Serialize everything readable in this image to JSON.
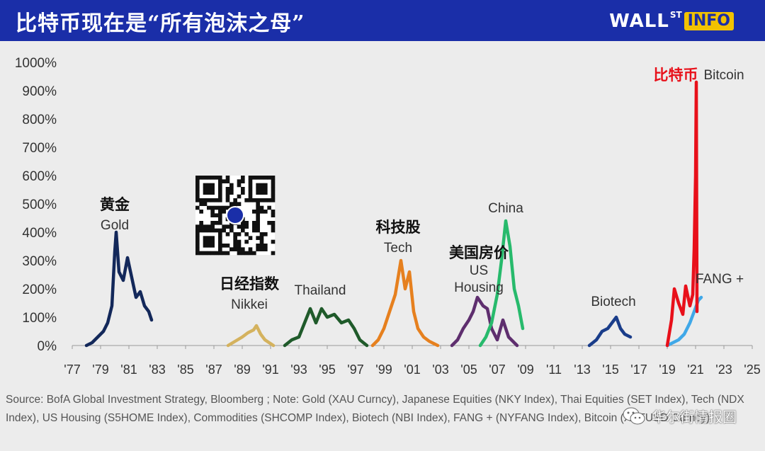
{
  "header": {
    "title": "比特币现在是“所有泡沫之母”",
    "brand_wall": "WALL",
    "brand_st": "ST",
    "brand_info": "INFO"
  },
  "chart_data": {
    "type": "line",
    "ylim": [
      0,
      1000
    ],
    "xlim": [
      1977,
      2025
    ],
    "y_ticks": [
      "0%",
      "100%",
      "200%",
      "300%",
      "400%",
      "500%",
      "600%",
      "700%",
      "800%",
      "900%",
      "1000%"
    ],
    "x_ticks": [
      "'77",
      "'79",
      "'81",
      "'83",
      "'85",
      "'87",
      "'89",
      "'91",
      "'93",
      "'95",
      "'97",
      "'99",
      "'01",
      "'03",
      "'05",
      "'07",
      "'09",
      "'11",
      "'13",
      "'15",
      "'17",
      "'19",
      "'21",
      "'23",
      "'25"
    ],
    "series": [
      {
        "name": "Gold",
        "color": "#13285a",
        "label_cn": "黄金",
        "points": [
          [
            1978.0,
            0
          ],
          [
            1978.4,
            10
          ],
          [
            1978.8,
            30
          ],
          [
            1979.2,
            50
          ],
          [
            1979.5,
            80
          ],
          [
            1979.8,
            140
          ],
          [
            1980.0,
            330
          ],
          [
            1980.1,
            400
          ],
          [
            1980.3,
            260
          ],
          [
            1980.6,
            230
          ],
          [
            1980.9,
            310
          ],
          [
            1981.2,
            240
          ],
          [
            1981.5,
            170
          ],
          [
            1981.8,
            190
          ],
          [
            1982.1,
            140
          ],
          [
            1982.4,
            120
          ],
          [
            1982.6,
            90
          ]
        ]
      },
      {
        "name": "Nikkei",
        "color": "#d4b25e",
        "label_cn": "日经指数",
        "points": [
          [
            1988.0,
            0
          ],
          [
            1988.5,
            15
          ],
          [
            1989.0,
            30
          ],
          [
            1989.4,
            45
          ],
          [
            1989.8,
            55
          ],
          [
            1990.0,
            70
          ],
          [
            1990.3,
            40
          ],
          [
            1990.6,
            20
          ],
          [
            1990.9,
            10
          ],
          [
            1991.2,
            0
          ]
        ]
      },
      {
        "name": "Thailand",
        "color": "#1f5a2a",
        "points": [
          [
            1992.0,
            0
          ],
          [
            1992.5,
            20
          ],
          [
            1993.0,
            30
          ],
          [
            1993.4,
            80
          ],
          [
            1993.8,
            130
          ],
          [
            1994.2,
            80
          ],
          [
            1994.6,
            130
          ],
          [
            1995.0,
            100
          ],
          [
            1995.5,
            110
          ],
          [
            1996.0,
            80
          ],
          [
            1996.5,
            90
          ],
          [
            1996.9,
            60
          ],
          [
            1997.3,
            20
          ],
          [
            1997.8,
            0
          ]
        ]
      },
      {
        "name": "Tech",
        "color": "#e6801e",
        "label_cn": "科技股",
        "points": [
          [
            1998.2,
            0
          ],
          [
            1998.6,
            20
          ],
          [
            1999.0,
            60
          ],
          [
            1999.4,
            120
          ],
          [
            1999.8,
            180
          ],
          [
            2000.2,
            300
          ],
          [
            2000.5,
            200
          ],
          [
            2000.8,
            260
          ],
          [
            2001.1,
            120
          ],
          [
            2001.4,
            60
          ],
          [
            2001.8,
            30
          ],
          [
            2002.2,
            15
          ],
          [
            2002.8,
            0
          ]
        ]
      },
      {
        "name": "US Housing",
        "color": "#5e2e6e",
        "label_cn": "美国房价",
        "points": [
          [
            2003.8,
            0
          ],
          [
            2004.2,
            20
          ],
          [
            2004.6,
            60
          ],
          [
            2005.0,
            90
          ],
          [
            2005.3,
            120
          ],
          [
            2005.6,
            170
          ],
          [
            2006.0,
            140
          ],
          [
            2006.3,
            130
          ],
          [
            2006.6,
            60
          ],
          [
            2007.0,
            20
          ],
          [
            2007.4,
            90
          ],
          [
            2007.8,
            30
          ],
          [
            2008.4,
            0
          ]
        ]
      },
      {
        "name": "China",
        "color": "#27ba6c",
        "points": [
          [
            2005.8,
            0
          ],
          [
            2006.2,
            30
          ],
          [
            2006.6,
            80
          ],
          [
            2007.0,
            180
          ],
          [
            2007.3,
            300
          ],
          [
            2007.6,
            440
          ],
          [
            2007.9,
            350
          ],
          [
            2008.2,
            200
          ],
          [
            2008.5,
            140
          ],
          [
            2008.8,
            60
          ]
        ]
      },
      {
        "name": "Biotech",
        "color": "#1a3d8a",
        "points": [
          [
            2013.5,
            0
          ],
          [
            2014.0,
            20
          ],
          [
            2014.4,
            50
          ],
          [
            2014.8,
            60
          ],
          [
            2015.1,
            80
          ],
          [
            2015.4,
            100
          ],
          [
            2015.7,
            60
          ],
          [
            2016.0,
            40
          ],
          [
            2016.4,
            30
          ]
        ]
      },
      {
        "name": "FANG +",
        "color": "#40a8e8",
        "points": [
          [
            2019.0,
            0
          ],
          [
            2019.4,
            10
          ],
          [
            2019.8,
            20
          ],
          [
            2020.2,
            40
          ],
          [
            2020.6,
            80
          ],
          [
            2020.9,
            120
          ],
          [
            2021.2,
            160
          ],
          [
            2021.4,
            170
          ]
        ]
      },
      {
        "name": "Bitcoin",
        "color": "#e8101a",
        "label_cn": "比特币",
        "points": [
          [
            2019.0,
            0
          ],
          [
            2019.3,
            90
          ],
          [
            2019.5,
            200
          ],
          [
            2019.8,
            150
          ],
          [
            2020.1,
            110
          ],
          [
            2020.3,
            210
          ],
          [
            2020.6,
            140
          ],
          [
            2020.8,
            180
          ],
          [
            2020.9,
            340
          ],
          [
            2021.0,
            600
          ],
          [
            2021.05,
            930
          ],
          [
            2021.1,
            120
          ]
        ]
      }
    ]
  },
  "qr_code": "qr-code",
  "source": {
    "text": "Source:  BofA Global Investment Strategy, Bloomberg ; Note: Gold (XAU Curncy), Japanese Equities (NKY Index), Thai Equities (SET Index), Tech (NDX Index), US Housing (S5HOME Index), Commodities (SHCOMP Index), Biotech (NBI Index), FANG + (NYFANG Index), Bitcoin (XBTUSD Curncy)"
  },
  "watermark": {
    "text": "华尔街情报圈",
    "icon": "wechat-icon"
  }
}
